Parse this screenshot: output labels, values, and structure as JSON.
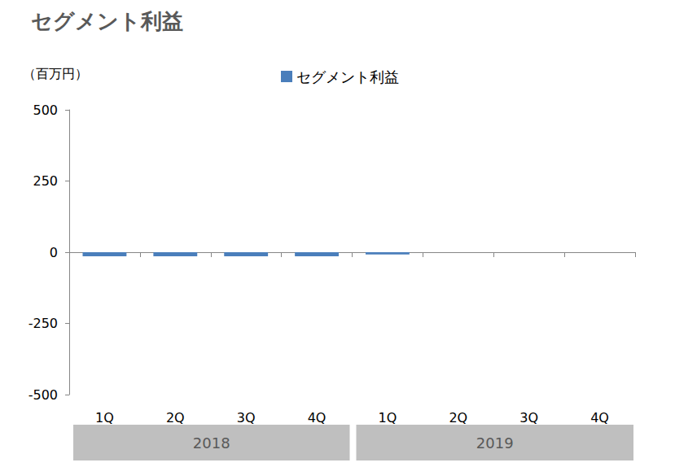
{
  "chart_data": {
    "type": "bar",
    "title": "セグメント利益",
    "y_label": "（百万円）",
    "categories": [
      "1Q",
      "2Q",
      "3Q",
      "4Q",
      "1Q",
      "2Q",
      "3Q",
      "4Q"
    ],
    "groups": [
      "2018",
      "2018",
      "2018",
      "2018",
      "2019",
      "2019",
      "2019",
      "2019"
    ],
    "series": [
      {
        "name": "セグメント利益",
        "color": "#4a7ebb",
        "values": [
          -14,
          -14,
          -14,
          -14,
          -8,
          null,
          null,
          null
        ]
      }
    ],
    "ylim": [
      -500,
      500
    ],
    "yticks": [
      -500,
      -250,
      0,
      250,
      500
    ],
    "grid": false,
    "legend": "top"
  }
}
